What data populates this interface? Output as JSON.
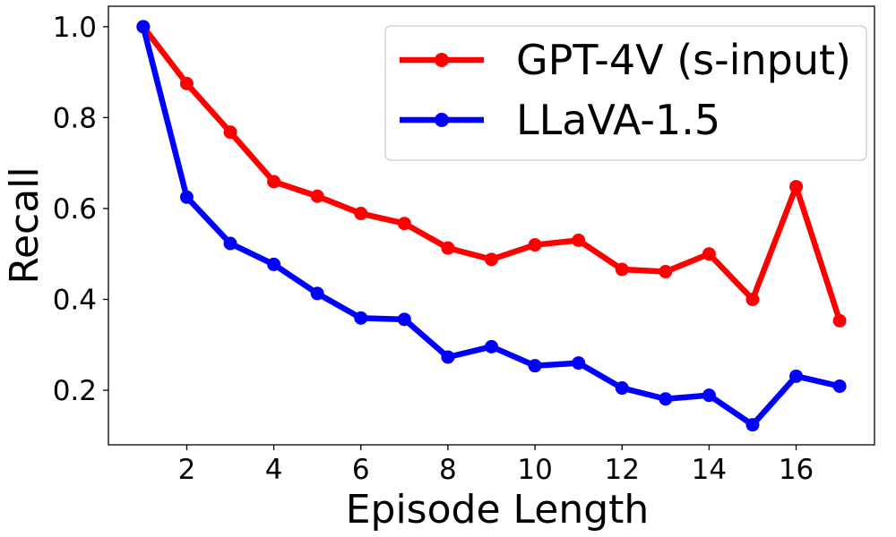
{
  "chart_data": {
    "type": "line",
    "title": "",
    "xlabel": "Episode Length",
    "ylabel": "Recall",
    "xlim": [
      0.2,
      17.8
    ],
    "ylim": [
      0.08,
      1.045
    ],
    "xticks": [
      2,
      4,
      6,
      8,
      10,
      12,
      14,
      16
    ],
    "yticks": [
      0.2,
      0.4,
      0.6,
      0.8,
      1.0
    ],
    "xtick_labels": [
      "2",
      "4",
      "6",
      "8",
      "10",
      "12",
      "14",
      "16"
    ],
    "ytick_labels": [
      "0.2",
      "0.4",
      "0.6",
      "0.8",
      "1.0"
    ],
    "grid": false,
    "legend_position": "top-right",
    "x": [
      1,
      2,
      3,
      4,
      5,
      6,
      7,
      8,
      9,
      10,
      11,
      12,
      13,
      14,
      15,
      16,
      17
    ],
    "series": [
      {
        "name": "GPT-4V (s-input)",
        "color": "#ff0000",
        "values": [
          1.0,
          0.875,
          0.768,
          0.659,
          0.627,
          0.589,
          0.567,
          0.513,
          0.488,
          0.52,
          0.53,
          0.466,
          0.461,
          0.5,
          0.4,
          0.648,
          0.353
        ]
      },
      {
        "name": "LLaVA-1.5",
        "color": "#0000ff",
        "values": [
          1.0,
          0.625,
          0.523,
          0.477,
          0.413,
          0.359,
          0.356,
          0.273,
          0.296,
          0.254,
          0.26,
          0.205,
          0.181,
          0.189,
          0.124,
          0.231,
          0.209
        ]
      }
    ]
  }
}
